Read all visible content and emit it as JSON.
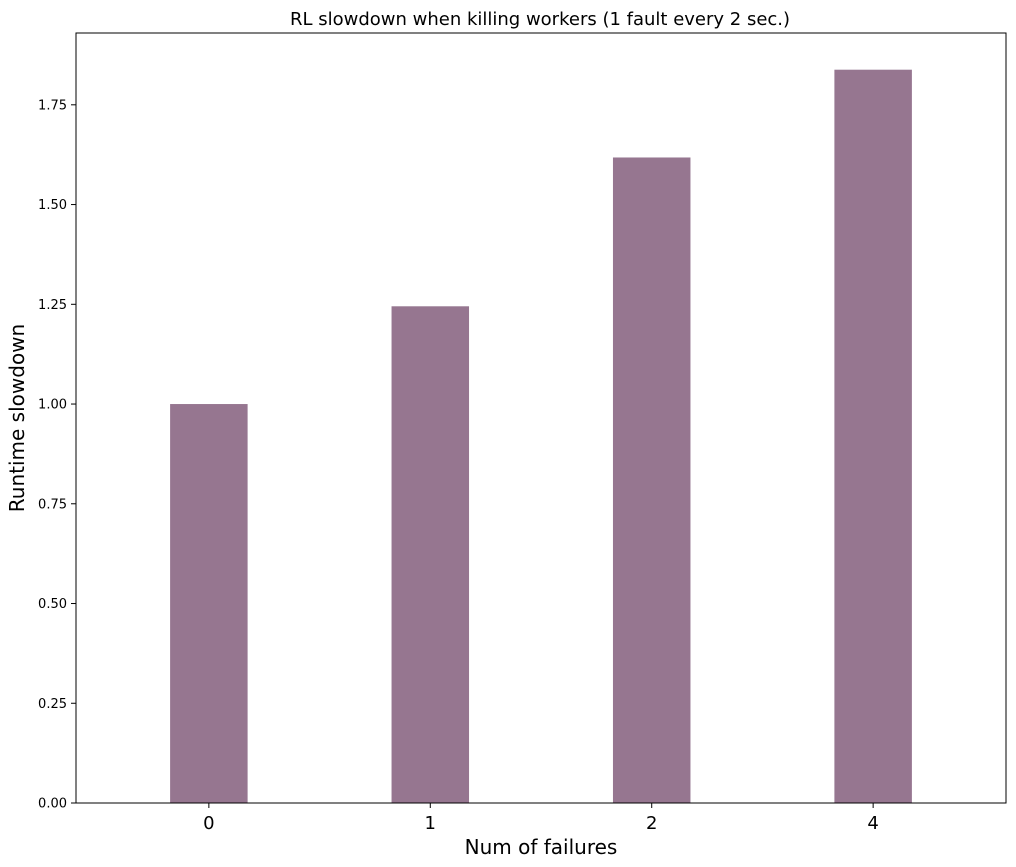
{
  "chart_data": {
    "type": "bar",
    "title": "RL slowdown when killing workers (1 fault every 2 sec.)",
    "xlabel": "Num of failures",
    "ylabel": "Runtime slowdown",
    "categories": [
      "0",
      "1",
      "2",
      "4"
    ],
    "values": [
      1.0,
      1.245,
      1.618,
      1.838
    ],
    "ylim": [
      0,
      1.93
    ],
    "yticks": [
      0.0,
      0.25,
      0.5,
      0.75,
      1.0,
      1.25,
      1.5,
      1.75
    ],
    "ytick_labels": [
      "0.00",
      "0.25",
      "0.50",
      "0.75",
      "1.00",
      "1.25",
      "1.50",
      "1.75"
    ],
    "bar_color": "#967690",
    "grid": false,
    "legend": "none"
  }
}
